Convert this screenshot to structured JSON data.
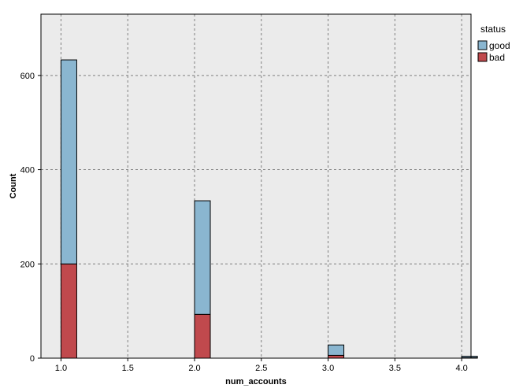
{
  "chart_data": {
    "type": "bar",
    "subtype": "stacked-histogram",
    "xlabel": "num_accounts",
    "ylabel": "Count",
    "xlim": [
      0.85,
      4.07
    ],
    "ylim": [
      0,
      730
    ],
    "xticks": [
      "1.0",
      "1.5",
      "2.0",
      "2.5",
      "3.0",
      "3.5",
      "4.0"
    ],
    "yticks": [
      "0",
      "200",
      "400",
      "600"
    ],
    "grid": true,
    "legend": {
      "title": "status",
      "placement": "top-right"
    },
    "categories": [
      "1.0",
      "2.0",
      "3.0",
      "4.0"
    ],
    "x": [
      1.0,
      2.0,
      3.0,
      4.0
    ],
    "series": [
      {
        "name": "bad",
        "color": "#c0494d",
        "values": [
          200,
          93,
          6,
          1
        ]
      },
      {
        "name": "good",
        "color": "#8ab6d0",
        "values": [
          433,
          241,
          22,
          3
        ]
      }
    ],
    "background_color": "#ebebeb",
    "gridline_color": "#7f7f7f"
  }
}
